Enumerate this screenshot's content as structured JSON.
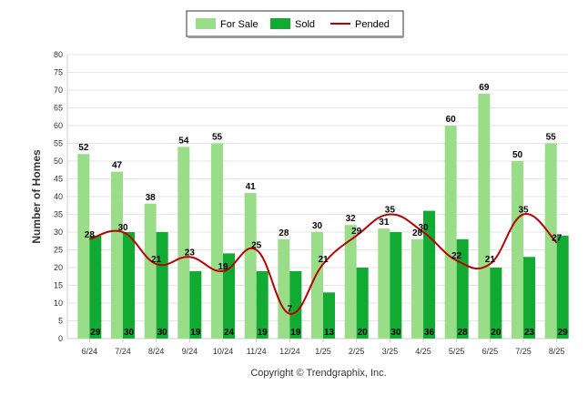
{
  "chart_data": {
    "type": "bar",
    "categories": [
      "6/24",
      "7/24",
      "8/24",
      "9/24",
      "10/24",
      "11/24",
      "12/24",
      "1/25",
      "2/25",
      "3/25",
      "4/25",
      "5/25",
      "6/25",
      "7/25",
      "8/25"
    ],
    "series": [
      {
        "name": "For Sale",
        "kind": "bar",
        "color": "#99dd88",
        "values": [
          52,
          47,
          38,
          54,
          55,
          41,
          28,
          30,
          32,
          31,
          28,
          60,
          69,
          50,
          55
        ]
      },
      {
        "name": "Sold",
        "kind": "bar",
        "color": "#11aa33",
        "values": [
          29,
          30,
          30,
          19,
          24,
          19,
          19,
          13,
          20,
          30,
          36,
          28,
          20,
          23,
          29
        ]
      },
      {
        "name": "Pended",
        "kind": "line",
        "color": "#bb0000",
        "values": [
          28,
          30,
          21,
          23,
          19,
          25,
          7,
          21,
          29,
          35,
          30,
          22,
          21,
          35,
          27
        ]
      }
    ],
    "ylabel": "Number of Homes",
    "xlabel": "",
    "ylim": [
      0,
      80
    ],
    "yticks": [
      0,
      5,
      10,
      15,
      20,
      25,
      30,
      35,
      40,
      45,
      50,
      55,
      60,
      65,
      70,
      75,
      80
    ],
    "grid": true,
    "legend_position": "top-center",
    "footer": "Copyright © Trendgraphix, Inc."
  }
}
